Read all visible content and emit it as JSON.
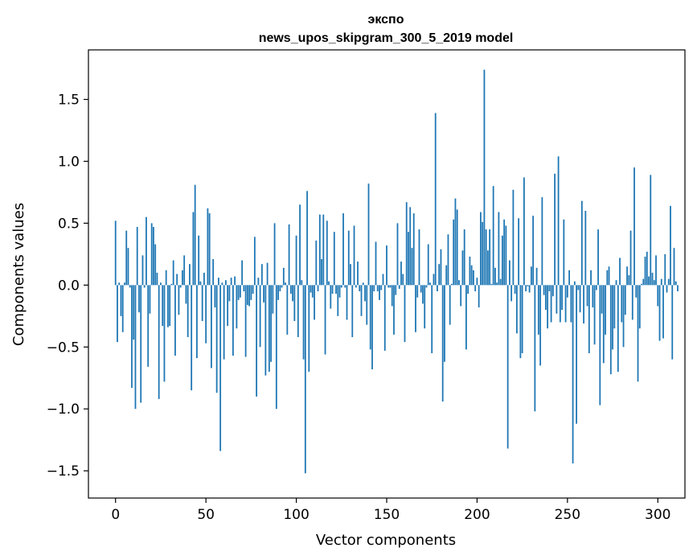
{
  "chart_data": {
    "type": "bar",
    "title": "экспо",
    "subtitle": "news_upos_skipgram_300_5_2019 model",
    "xlabel": "Vector components",
    "ylabel": "Components values",
    "xlim": [
      -15,
      315
    ],
    "ylim": [
      -1.72,
      1.9
    ],
    "x_ticks": [
      0,
      50,
      100,
      150,
      200,
      250,
      300
    ],
    "y_ticks": [
      -1.5,
      -1.0,
      -0.5,
      0.0,
      0.5,
      1.0,
      1.5
    ],
    "y_tick_labels": [
      "−1.5",
      "−1.0",
      "−0.5",
      "0.0",
      "0.5",
      "1.0",
      "1.5"
    ],
    "bar_color": "#1f77b4",
    "values": [
      0.52,
      -0.46,
      0.02,
      -0.25,
      -0.38,
      0.02,
      0.44,
      0.3,
      -0.02,
      -0.83,
      -0.44,
      -1.0,
      0.47,
      -0.22,
      -0.95,
      0.24,
      -0.02,
      0.55,
      -0.66,
      -0.23,
      0.5,
      0.47,
      0.33,
      0.1,
      -0.92,
      0.02,
      -0.33,
      -0.78,
      0.12,
      -0.34,
      -0.33,
      0.01,
      0.2,
      -0.57,
      0.09,
      -0.24,
      -0.02,
      0.12,
      0.24,
      -0.15,
      -0.42,
      0.17,
      -0.85,
      0.59,
      0.81,
      -0.59,
      0.4,
      0.03,
      -0.29,
      0.1,
      -0.47,
      0.62,
      0.58,
      -0.67,
      0.21,
      -0.18,
      -0.87,
      0.06,
      -1.34,
      0.02,
      -0.6,
      0.04,
      -0.33,
      -0.13,
      0.06,
      -0.57,
      0.07,
      -0.35,
      -0.12,
      -0.1,
      0.2,
      -0.05,
      -0.58,
      -0.16,
      -0.17,
      -0.12,
      -0.07,
      0.39,
      -0.9,
      0.06,
      -0.5,
      0.17,
      -0.14,
      -0.73,
      0.18,
      -0.7,
      -0.62,
      -0.23,
      0.5,
      -1.0,
      -0.12,
      -0.05,
      -0.02,
      0.14,
      0.02,
      -0.4,
      0.49,
      -0.07,
      -0.13,
      -0.29,
      0.4,
      -0.42,
      0.65,
      0.04,
      -0.6,
      -1.52,
      0.76,
      -0.7,
      -0.06,
      -0.1,
      -0.28,
      0.36,
      -0.05,
      0.57,
      0.21,
      0.57,
      -0.56,
      0.52,
      0.03,
      -0.19,
      -0.07,
      0.43,
      -0.07,
      -0.25,
      -0.1,
      -0.02,
      0.58,
      -0.02,
      -0.28,
      0.44,
      0.17,
      -0.42,
      0.48,
      -0.02,
      0.19,
      -0.05,
      -0.25,
      0.02,
      -0.13,
      -0.32,
      0.82,
      -0.52,
      -0.68,
      -0.05,
      0.35,
      -0.05,
      -0.12,
      -0.04,
      0.09,
      -0.53,
      0.32,
      -0.02,
      -0.02,
      -0.17,
      -0.4,
      -0.08,
      0.5,
      -0.03,
      0.19,
      0.09,
      -0.46,
      0.67,
      0.43,
      0.63,
      0.3,
      0.58,
      -0.38,
      -0.1,
      0.45,
      -0.06,
      -0.15,
      -0.35,
      -0.02,
      0.33,
      0.02,
      -0.55,
      0.09,
      1.39,
      -0.05,
      0.17,
      0.29,
      -0.94,
      -0.62,
      0.16,
      0.41,
      -0.32,
      0.01,
      0.53,
      0.7,
      0.61,
      0.04,
      -0.17,
      0.28,
      0.45,
      -0.52,
      -0.07,
      0.23,
      0.16,
      0.12,
      -0.05,
      0.06,
      -0.18,
      0.59,
      0.51,
      1.74,
      0.45,
      0.28,
      0.45,
      0.01,
      0.8,
      0.14,
      0.02,
      0.59,
      0.05,
      0.4,
      0.53,
      0.48,
      -1.32,
      0.2,
      -0.13,
      0.77,
      -0.07,
      -0.39,
      0.54,
      -0.59,
      -0.55,
      0.87,
      -0.05,
      -0.01,
      -0.06,
      0.15,
      0.56,
      -1.02,
      0.14,
      -0.4,
      -0.65,
      0.71,
      -0.08,
      -0.2,
      -0.35,
      -0.05,
      -0.3,
      -0.09,
      0.9,
      -0.23,
      1.04,
      -0.3,
      -0.2,
      0.53,
      -0.3,
      -0.1,
      0.12,
      -0.3,
      -1.44,
      0.03,
      -1.12,
      -0.04,
      -0.22,
      0.68,
      -0.31,
      0.6,
      -0.17,
      -0.55,
      0.12,
      -0.18,
      -0.48,
      -0.04,
      0.45,
      -0.97,
      -0.23,
      -0.63,
      -0.4,
      0.12,
      0.15,
      -0.72,
      -0.52,
      -0.35,
      0.04,
      -0.7,
      0.22,
      -0.3,
      -0.5,
      -0.24,
      0.15,
      0.08,
      0.44,
      -0.28,
      0.95,
      -0.1,
      -0.78,
      -0.35,
      0.01,
      0.05,
      0.23,
      0.27,
      0.07,
      0.89,
      0.1,
      0.04,
      0.24,
      -0.17,
      -0.45,
      0.05,
      -0.43,
      0.25,
      -0.06,
      0.05,
      0.64,
      -0.6,
      0.3,
      0.03,
      -0.05
    ]
  }
}
